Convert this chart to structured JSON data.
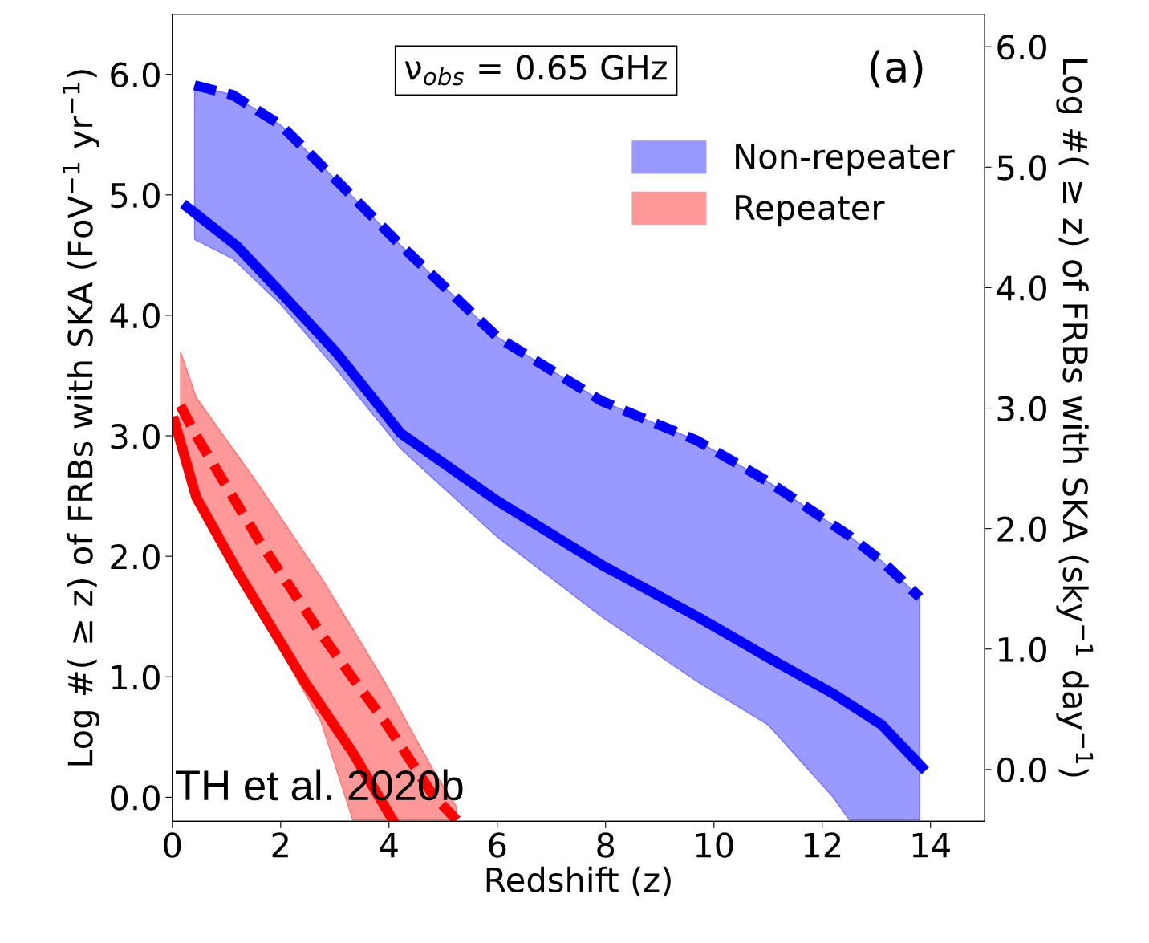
{
  "chart_data": {
    "type": "line",
    "xlabel": "Redshift (z)",
    "ylabel": "Log #( ≥ z) of FRBs with SKA (FoV$^{−1}$ yr$^{−1}$)",
    "y2label": "Log #( ≥ z) of FRBs with SKA (sky$^{−1}$ day$^{−1}$)",
    "xlim": [
      0,
      15
    ],
    "xticks": [
      0,
      2,
      4,
      6,
      8,
      10,
      12,
      14
    ],
    "ylim": [
      -0.2,
      6.5
    ],
    "yticks": [
      {
        "value": 0,
        "label": "0.0"
      },
      {
        "value": 1,
        "label": "1.0"
      },
      {
        "value": 2,
        "label": "2.0"
      },
      {
        "value": 3,
        "label": "3.0"
      },
      {
        "value": 4,
        "label": "4.0"
      },
      {
        "value": 5,
        "label": "5.0"
      },
      {
        "value": 6,
        "label": "6.0"
      }
    ],
    "y2lim": [
      -0.43,
      6.27
    ],
    "y2ticks": [
      {
        "value": 0,
        "label": "0.0"
      },
      {
        "value": 1,
        "label": "1.0"
      },
      {
        "value": 2,
        "label": "2.0"
      },
      {
        "value": 3,
        "label": "3.0"
      },
      {
        "value": 4,
        "label": "4.0"
      },
      {
        "value": 5,
        "label": "5.0"
      },
      {
        "value": 6,
        "label": "6.0"
      }
    ],
    "legend": "top right",
    "series": [
      {
        "name": "Non-repeater",
        "color": "#0000ff",
        "line_style": "dashed",
        "x": [
          0.41,
          1.11,
          2.0,
          3.03,
          4.22,
          6.0,
          7.92,
          9.69,
          11.0,
          12.2,
          12.5,
          13.1,
          13.8
        ],
        "values": [
          5.91,
          5.83,
          5.58,
          5.12,
          4.58,
          3.82,
          3.29,
          2.96,
          2.62,
          2.26,
          2.17,
          1.96,
          1.66
        ],
        "lower": [
          4.63,
          4.47,
          4.09,
          3.55,
          2.89,
          2.16,
          1.5,
          0.96,
          0.6,
          0.0,
          -0.19,
          -0.19,
          -0.19
        ],
        "upper": [
          5.91,
          5.83,
          5.58,
          5.12,
          4.58,
          3.82,
          3.29,
          2.96,
          2.62,
          2.26,
          2.17,
          1.96,
          1.66
        ]
      },
      {
        "name": "Repeater",
        "color": "#ff0000",
        "line_style": "dashed",
        "x": [
          0.15,
          0.44,
          1.6,
          2.74,
          3.33,
          3.92,
          4.81,
          5.25
        ],
        "values": [
          3.25,
          3.0,
          2.13,
          1.36,
          0.99,
          0.63,
          0.02,
          -0.19
        ],
        "lower": [
          3.02,
          2.56,
          1.53,
          0.63,
          -0.19,
          -0.19,
          -0.19,
          -0.19
        ],
        "upper": [
          3.7,
          3.32,
          2.59,
          1.83,
          1.4,
          0.96,
          0.23,
          -0.08
        ]
      },
      {
        "color": "#0000ff",
        "line_style": "solid",
        "x": [
          0.27,
          1.18,
          2.0,
          3.03,
          4.22,
          6.0,
          7.92,
          9.69,
          11.0,
          12.2,
          13.1,
          13.84
        ],
        "values": [
          4.9,
          4.58,
          4.19,
          3.69,
          3.02,
          2.46,
          1.93,
          1.5,
          1.16,
          0.86,
          0.6,
          0.25
        ]
      },
      {
        "color": "#ff0000",
        "line_style": "solid",
        "x": [
          0.04,
          0.44,
          1.26,
          2.44,
          3.33,
          4.07
        ],
        "values": [
          3.12,
          2.49,
          1.83,
          0.96,
          0.37,
          -0.19
        ]
      }
    ],
    "annotations": [
      "ν$_{obs}$ = 0.65 GHz",
      "(a)",
      "TH et al. 2020b"
    ]
  }
}
